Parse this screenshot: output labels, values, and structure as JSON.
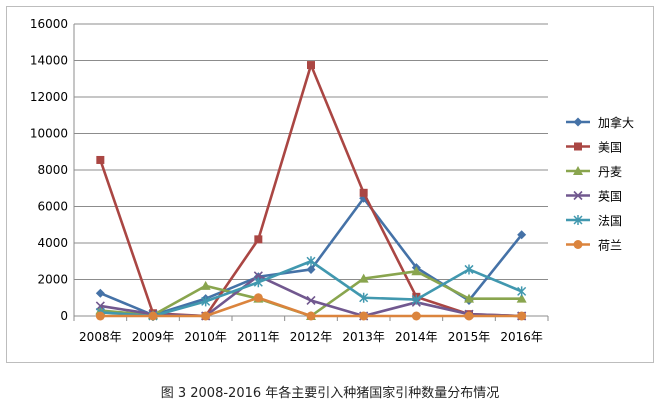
{
  "chart_data": {
    "type": "line",
    "title": "",
    "xlabel": "",
    "ylabel": "",
    "categories": [
      "2008年",
      "2009年",
      "2010年",
      "2011年",
      "2012年",
      "2013年",
      "2014年",
      "2015年",
      "2016年"
    ],
    "ylim": [
      0,
      16000
    ],
    "yticks": [
      "0",
      "2000",
      "4000",
      "6000",
      "8000",
      "10000",
      "12000",
      "14000",
      "16000"
    ],
    "grid": true,
    "legend_position": "right",
    "series": [
      {
        "name": "加拿大",
        "color": "#4572A7",
        "marker": "diamond",
        "values": [
          1250,
          50,
          950,
          2150,
          2550,
          6450,
          2650,
          850,
          4450
        ]
      },
      {
        "name": "美国",
        "color": "#AA4643",
        "marker": "square",
        "values": [
          8550,
          150,
          0,
          4200,
          13750,
          6750,
          1050,
          100,
          0
        ]
      },
      {
        "name": "丹麦",
        "color": "#89A54E",
        "marker": "triangle",
        "values": [
          300,
          50,
          1650,
          950,
          0,
          2050,
          2450,
          950,
          950
        ]
      },
      {
        "name": "英国",
        "color": "#71588F",
        "marker": "x",
        "values": [
          550,
          100,
          0,
          2200,
          850,
          0,
          750,
          100,
          0
        ]
      },
      {
        "name": "法国",
        "color": "#4198AF",
        "marker": "star",
        "values": [
          200,
          0,
          800,
          1850,
          3000,
          1000,
          900,
          2550,
          1350
        ]
      },
      {
        "name": "荷兰",
        "color": "#DB843D",
        "marker": "circle",
        "values": [
          0,
          0,
          0,
          1000,
          0,
          0,
          0,
          0,
          0
        ]
      }
    ]
  },
  "caption": "图 3   2008-2016 年各主要引入种猪国家引种数量分布情况"
}
